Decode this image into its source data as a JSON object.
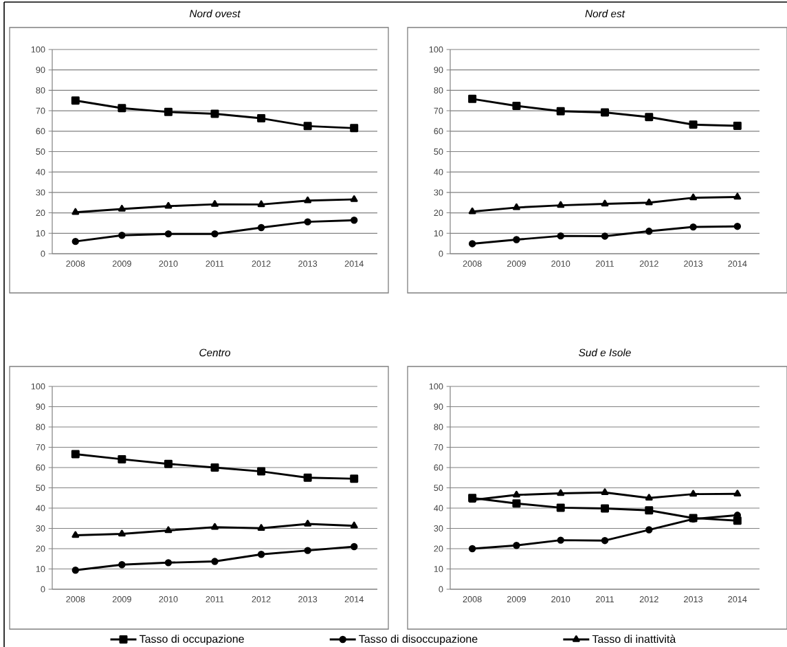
{
  "chart_data": [
    {
      "type": "line",
      "title": "Nord ovest",
      "categories": [
        "2008",
        "2009",
        "2010",
        "2011",
        "2012",
        "2013",
        "2014"
      ],
      "ylim": [
        0,
        100
      ],
      "yticks": [
        0,
        10,
        20,
        30,
        40,
        50,
        60,
        70,
        80,
        90,
        100
      ],
      "grid": "y",
      "series": [
        {
          "color": "#000000",
          "marker": "square",
          "values": [
            75.0,
            71.3,
            69.4,
            68.5,
            66.3,
            62.5,
            61.5
          ]
        },
        {
          "color": "#000000",
          "marker": "circle",
          "values": [
            6.0,
            9.0,
            9.7,
            9.7,
            12.8,
            15.6,
            16.4
          ]
        },
        {
          "color": "#000000",
          "marker": "triangle",
          "values": [
            20.3,
            21.9,
            23.3,
            24.2,
            24.1,
            26.0,
            26.6
          ]
        }
      ]
    },
    {
      "type": "line",
      "title": "Nord est",
      "categories": [
        "2008",
        "2009",
        "2010",
        "2011",
        "2012",
        "2013",
        "2014"
      ],
      "ylim": [
        0,
        100
      ],
      "yticks": [
        0,
        10,
        20,
        30,
        40,
        50,
        60,
        70,
        80,
        90,
        100
      ],
      "grid": "y",
      "series": [
        {
          "color": "#000000",
          "marker": "square",
          "values": [
            75.8,
            72.4,
            69.8,
            69.2,
            66.9,
            63.2,
            62.6
          ]
        },
        {
          "color": "#000000",
          "marker": "circle",
          "values": [
            4.9,
            6.9,
            8.7,
            8.6,
            11.0,
            13.1,
            13.4
          ]
        },
        {
          "color": "#000000",
          "marker": "triangle",
          "values": [
            20.6,
            22.6,
            23.7,
            24.4,
            25.0,
            27.4,
            27.8
          ]
        }
      ]
    },
    {
      "type": "line",
      "title": "Centro",
      "categories": [
        "2008",
        "2009",
        "2010",
        "2011",
        "2012",
        "2013",
        "2014"
      ],
      "ylim": [
        0,
        100
      ],
      "yticks": [
        0,
        10,
        20,
        30,
        40,
        50,
        60,
        70,
        80,
        90,
        100
      ],
      "grid": "y",
      "series": [
        {
          "color": "#000000",
          "marker": "square",
          "values": [
            66.6,
            64.1,
            61.8,
            60.0,
            58.1,
            55.0,
            54.5
          ]
        },
        {
          "color": "#000000",
          "marker": "circle",
          "values": [
            9.4,
            12.1,
            13.1,
            13.7,
            17.2,
            19.1,
            21.0
          ]
        },
        {
          "color": "#000000",
          "marker": "triangle",
          "values": [
            26.6,
            27.3,
            29.0,
            30.6,
            30.1,
            32.2,
            31.3
          ]
        }
      ]
    },
    {
      "type": "line",
      "title": "Sud e Isole",
      "categories": [
        "2008",
        "2009",
        "2010",
        "2011",
        "2012",
        "2013",
        "2014"
      ],
      "ylim": [
        0,
        100
      ],
      "yticks": [
        0,
        10,
        20,
        30,
        40,
        50,
        60,
        70,
        80,
        90,
        100
      ],
      "grid": "y",
      "legend": "bottom",
      "series": [
        {
          "name": "Tasso di occupazione",
          "color": "#000000",
          "marker": "square",
          "values": [
            45.0,
            42.3,
            40.2,
            39.8,
            38.9,
            35.1,
            33.8
          ]
        },
        {
          "name": "Tasso di disoccupazione",
          "color": "#000000",
          "marker": "circle",
          "values": [
            20.0,
            21.6,
            24.2,
            24.0,
            29.3,
            34.6,
            36.5
          ]
        },
        {
          "name": "Tasso di inattività",
          "color": "#000000",
          "marker": "triangle",
          "values": [
            44.0,
            46.5,
            47.3,
            47.7,
            45.0,
            46.9,
            47.0
          ]
        }
      ]
    }
  ]
}
